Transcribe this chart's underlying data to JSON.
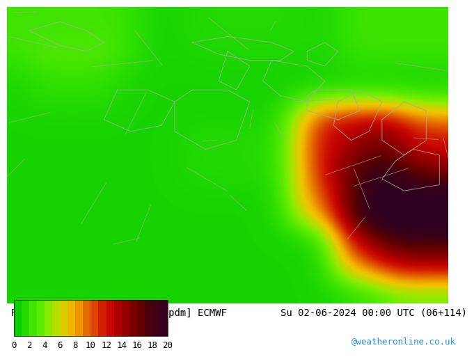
{
  "title_line1": "RH 700 hPa Spread mean+σ [gpdm] ECMWF",
  "title_line2": "Su 02-06-2024 00:00 UTC (06+114)",
  "colorbar_label": "",
  "cbar_ticks": [
    0,
    2,
    4,
    6,
    8,
    10,
    12,
    14,
    16,
    18,
    20
  ],
  "cbar_colors": [
    "#00c800",
    "#18d400",
    "#30e000",
    "#48ec00",
    "#60f000",
    "#90e000",
    "#c8d400",
    "#f0c000",
    "#f0a000",
    "#e88000",
    "#e06000",
    "#d84000",
    "#cc2000",
    "#c00000",
    "#a80000",
    "#900000",
    "#780000",
    "#600000",
    "#500000",
    "#400000",
    "#300020"
  ],
  "map_bg_color": "#00dd00",
  "border_color": "#aaaaaa",
  "text_color": "#000000",
  "watermark": "@weatheronline.co.uk",
  "watermark_color": "#1e90ff",
  "fig_bg_color": "#ffffff",
  "font_size_title": 10,
  "font_size_tick": 9,
  "font_size_watermark": 9
}
